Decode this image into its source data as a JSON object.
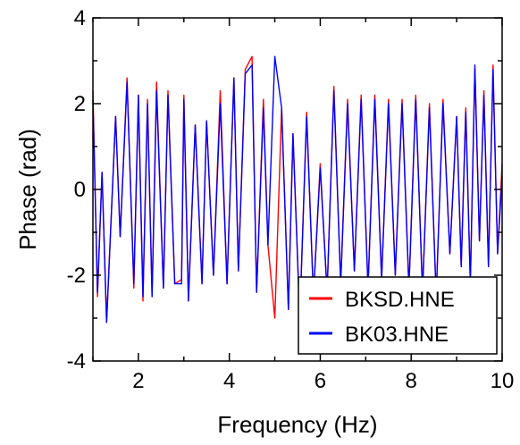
{
  "chart_data": {
    "type": "line",
    "title": "",
    "xlabel": "Frequency (Hz)",
    "ylabel": "Phase (rad)",
    "xlim": [
      1,
      10
    ],
    "ylim": [
      -4,
      4
    ],
    "x_ticks": [
      2,
      4,
      6,
      8,
      10
    ],
    "y_ticks": [
      -4,
      -2,
      0,
      2,
      4
    ],
    "grid": false,
    "legend_position": "bottom-right",
    "series": [
      {
        "name": "BKSD.HNE",
        "color": "#ff0000",
        "x": [
          1.0,
          1.1,
          1.2,
          1.3,
          1.5,
          1.6,
          1.75,
          1.9,
          2.0,
          2.1,
          2.2,
          2.3,
          2.4,
          2.55,
          2.65,
          2.8,
          2.95,
          3.0,
          3.1,
          3.25,
          3.4,
          3.5,
          3.65,
          3.8,
          3.95,
          4.1,
          4.2,
          4.35,
          4.5,
          4.6,
          4.75,
          4.85,
          5.0,
          5.15,
          5.3,
          5.4,
          5.55,
          5.7,
          5.85,
          6.0,
          6.15,
          6.3,
          6.45,
          6.6,
          6.75,
          6.9,
          7.05,
          7.2,
          7.35,
          7.5,
          7.65,
          7.8,
          7.95,
          8.1,
          8.25,
          8.4,
          8.55,
          8.7,
          8.85,
          9.0,
          9.1,
          9.2,
          9.3,
          9.4,
          9.5,
          9.6,
          9.7,
          9.8,
          9.9,
          10.0
        ],
        "y": [
          2.3,
          -2.5,
          0.4,
          -3.1,
          1.7,
          -1.1,
          2.6,
          -2.3,
          2.2,
          -2.6,
          2.1,
          -2.5,
          2.5,
          -2.3,
          2.3,
          -2.2,
          -2.1,
          2.2,
          -2.6,
          1.5,
          -2.2,
          1.6,
          -2.0,
          2.3,
          -2.2,
          2.6,
          -1.9,
          2.8,
          3.1,
          -2.4,
          2.1,
          -1.3,
          -3.0,
          1.9,
          -2.8,
          1.3,
          -3.0,
          1.8,
          -2.5,
          0.6,
          -2.4,
          2.4,
          -2.2,
          2.1,
          -1.9,
          2.2,
          -2.3,
          2.2,
          -2.1,
          2.1,
          -2.0,
          2.1,
          -2.3,
          2.2,
          -2.4,
          2.0,
          -2.5,
          2.1,
          -1.5,
          1.7,
          -1.8,
          1.9,
          -2.2,
          2.8,
          -1.2,
          2.3,
          -1.8,
          2.9,
          -1.5,
          0.6
        ]
      },
      {
        "name": "BK03.HNE",
        "color": "#0000ff",
        "x": [
          1.0,
          1.1,
          1.2,
          1.3,
          1.5,
          1.6,
          1.75,
          1.9,
          2.0,
          2.1,
          2.2,
          2.3,
          2.4,
          2.55,
          2.65,
          2.8,
          2.95,
          3.0,
          3.1,
          3.25,
          3.4,
          3.5,
          3.65,
          3.8,
          3.95,
          4.1,
          4.2,
          4.35,
          4.5,
          4.6,
          4.75,
          4.85,
          5.0,
          5.15,
          5.3,
          5.4,
          5.55,
          5.7,
          5.85,
          6.0,
          6.15,
          6.3,
          6.45,
          6.6,
          6.75,
          6.9,
          7.05,
          7.2,
          7.35,
          7.5,
          7.65,
          7.8,
          7.95,
          8.1,
          8.25,
          8.4,
          8.55,
          8.7,
          8.85,
          9.0,
          9.1,
          9.2,
          9.3,
          9.4,
          9.5,
          9.6,
          9.7,
          9.8,
          9.9,
          10.0
        ],
        "y": [
          2.1,
          -2.4,
          0.4,
          -3.1,
          1.7,
          -1.1,
          2.5,
          -2.2,
          2.2,
          -2.5,
          2.0,
          -2.5,
          2.3,
          -2.3,
          2.2,
          -2.2,
          -2.2,
          2.1,
          -2.6,
          1.5,
          -2.2,
          1.6,
          -2.0,
          2.0,
          -2.2,
          2.6,
          -1.9,
          2.7,
          2.9,
          -2.4,
          1.9,
          -1.3,
          3.1,
          1.9,
          -2.8,
          1.3,
          -3.0,
          1.7,
          -2.5,
          0.5,
          -2.4,
          2.3,
          -2.2,
          2.0,
          -1.9,
          2.1,
          -2.3,
          2.1,
          -2.1,
          2.0,
          -2.0,
          2.0,
          -2.3,
          2.1,
          -2.4,
          1.9,
          -2.5,
          2.0,
          -1.5,
          1.7,
          -1.8,
          1.8,
          -2.2,
          2.9,
          -1.2,
          2.2,
          -1.8,
          2.8,
          -1.5,
          0.3
        ]
      }
    ]
  }
}
